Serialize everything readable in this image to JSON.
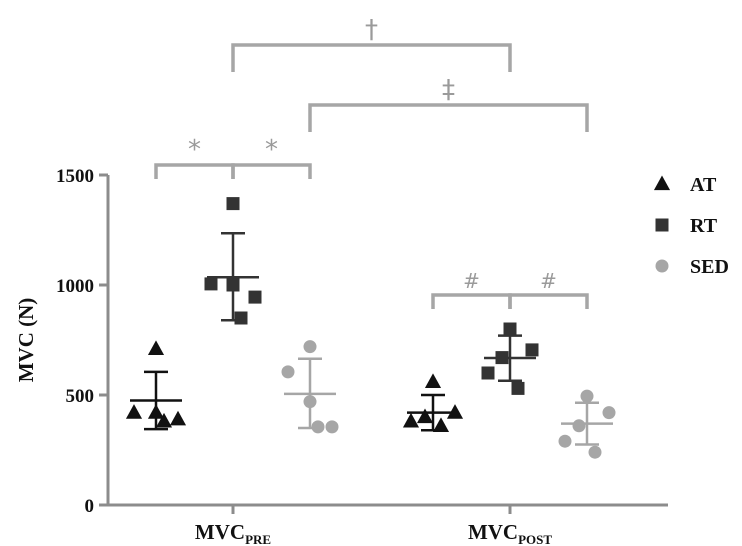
{
  "chart_data": {
    "type": "scatter",
    "ylabel": "MVC (N)",
    "xlabel": "",
    "ylim": [
      0,
      1500
    ],
    "yticks": [
      0,
      500,
      1000,
      1500
    ],
    "grid": false,
    "legend_position": "top-right",
    "categories": [
      {
        "main": "MVC",
        "sub": "PRE"
      },
      {
        "main": "MVC",
        "sub": "POST"
      }
    ],
    "colors": {
      "AT": "#111111",
      "RT": "#333333",
      "SED": "#a6a6a6",
      "sig": "#a6a6a6"
    },
    "series": [
      {
        "name": "AT",
        "marker": "triangle",
        "groups": [
          {
            "category": 0,
            "values": [
              710,
              420,
              420,
              390,
              380
            ],
            "mean": 475,
            "sd_upper": 605,
            "sd_lower": 345
          },
          {
            "category": 1,
            "values": [
              560,
              420,
              400,
              380,
              360
            ],
            "mean": 420,
            "sd_upper": 500,
            "sd_lower": 340
          }
        ]
      },
      {
        "name": "RT",
        "marker": "square",
        "groups": [
          {
            "category": 0,
            "values": [
              1370,
              1005,
              1000,
              945,
              850
            ],
            "mean": 1035,
            "sd_upper": 1235,
            "sd_lower": 840
          },
          {
            "category": 1,
            "values": [
              800,
              705,
              670,
              600,
              530
            ],
            "mean": 668,
            "sd_upper": 770,
            "sd_lower": 565
          }
        ]
      },
      {
        "name": "SED",
        "marker": "circle",
        "groups": [
          {
            "category": 0,
            "values": [
              720,
              605,
              470,
              355,
              355
            ],
            "mean": 505,
            "sd_upper": 665,
            "sd_lower": 350
          },
          {
            "category": 1,
            "values": [
              495,
              420,
              360,
              290,
              240
            ],
            "mean": 370,
            "sd_upper": 465,
            "sd_lower": 275
          }
        ]
      }
    ],
    "significance": [
      {
        "symbol": "*",
        "from": {
          "category": 0,
          "series": "AT"
        },
        "to": {
          "category": 0,
          "series": "RT"
        }
      },
      {
        "symbol": "*",
        "from": {
          "category": 0,
          "series": "RT"
        },
        "to": {
          "category": 0,
          "series": "SED"
        }
      },
      {
        "symbol": "#",
        "from": {
          "category": 1,
          "series": "AT"
        },
        "to": {
          "category": 1,
          "series": "RT"
        }
      },
      {
        "symbol": "#",
        "from": {
          "category": 1,
          "series": "RT"
        },
        "to": {
          "category": 1,
          "series": "SED"
        }
      },
      {
        "symbol": "†",
        "from": {
          "category": 0,
          "series": "RT"
        },
        "to": {
          "category": 1,
          "series": "RT"
        }
      },
      {
        "symbol": "‡",
        "from": {
          "category": 0,
          "series": "SED"
        },
        "to": {
          "category": 1,
          "series": "SED"
        }
      }
    ]
  }
}
